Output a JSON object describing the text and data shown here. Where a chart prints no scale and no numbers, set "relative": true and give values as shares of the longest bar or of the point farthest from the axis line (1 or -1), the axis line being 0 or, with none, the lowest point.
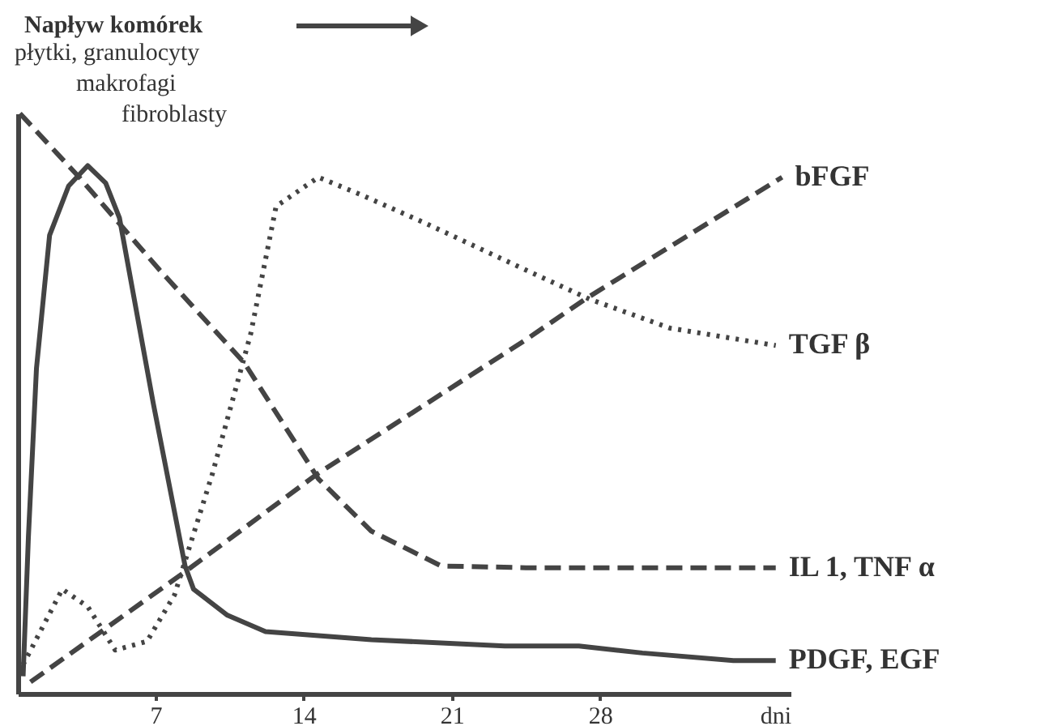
{
  "chart_data": {
    "type": "line",
    "relative": true,
    "title": "Napływ komórek",
    "xlabel": "dni",
    "annotations": [
      "płytki, granulocyty",
      "makrofagi",
      "fibroblasty"
    ],
    "xlim": [
      0.5,
      37
    ],
    "xticks": [
      7,
      14,
      21,
      28
    ],
    "tick_labels": "x",
    "grid": false,
    "legend": false,
    "marker": "none",
    "series": [
      {
        "name": "PDGF, EGF",
        "color": "#444444",
        "line_style": "solid",
        "x": [
          0.75,
          1.0,
          1.38,
          2.0,
          2.9,
          3.8,
          4.65,
          5.3,
          6.9,
          8.4,
          8.8,
          10.4,
          12.2,
          17.2,
          23.5,
          27,
          30,
          34.3,
          36.3
        ],
        "values": [
          0.03,
          0.27,
          0.56,
          0.79,
          0.875,
          0.91,
          0.88,
          0.82,
          0.5,
          0.22,
          0.18,
          0.135,
          0.107,
          0.093,
          0.082,
          0.082,
          0.07,
          0.057,
          0.057
        ]
      },
      {
        "name": "IL 1, TNF α",
        "color": "#444444",
        "line_style": "dashed",
        "x": [
          0.6,
          3.4,
          7.2,
          11.2,
          14.7,
          17.2,
          20.5,
          24.5,
          36.3
        ],
        "values": [
          1.0,
          0.89,
          0.73,
          0.57,
          0.37,
          0.28,
          0.22,
          0.217,
          0.217
        ]
      },
      {
        "name": "bFGF",
        "color": "#444444",
        "line_style": "dashed",
        "x": [
          1.1,
          8.4,
          14.7,
          24.5,
          27.3,
          36.6
        ],
        "values": [
          0.02,
          0.21,
          0.38,
          0.61,
          0.68,
          0.89
        ]
      },
      {
        "name": "TGF β",
        "color": "#444444",
        "line_style": "dotted",
        "x": [
          0.75,
          2.6,
          3.8,
          5.1,
          6.6,
          7.9,
          9.7,
          11.5,
          12.7,
          14.7,
          16.7,
          19.8,
          24.5,
          27.5,
          31.3,
          36.3
        ],
        "values": [
          0.05,
          0.18,
          0.15,
          0.075,
          0.09,
          0.17,
          0.38,
          0.62,
          0.84,
          0.89,
          0.86,
          0.81,
          0.73,
          0.68,
          0.63,
          0.6
        ]
      }
    ]
  }
}
